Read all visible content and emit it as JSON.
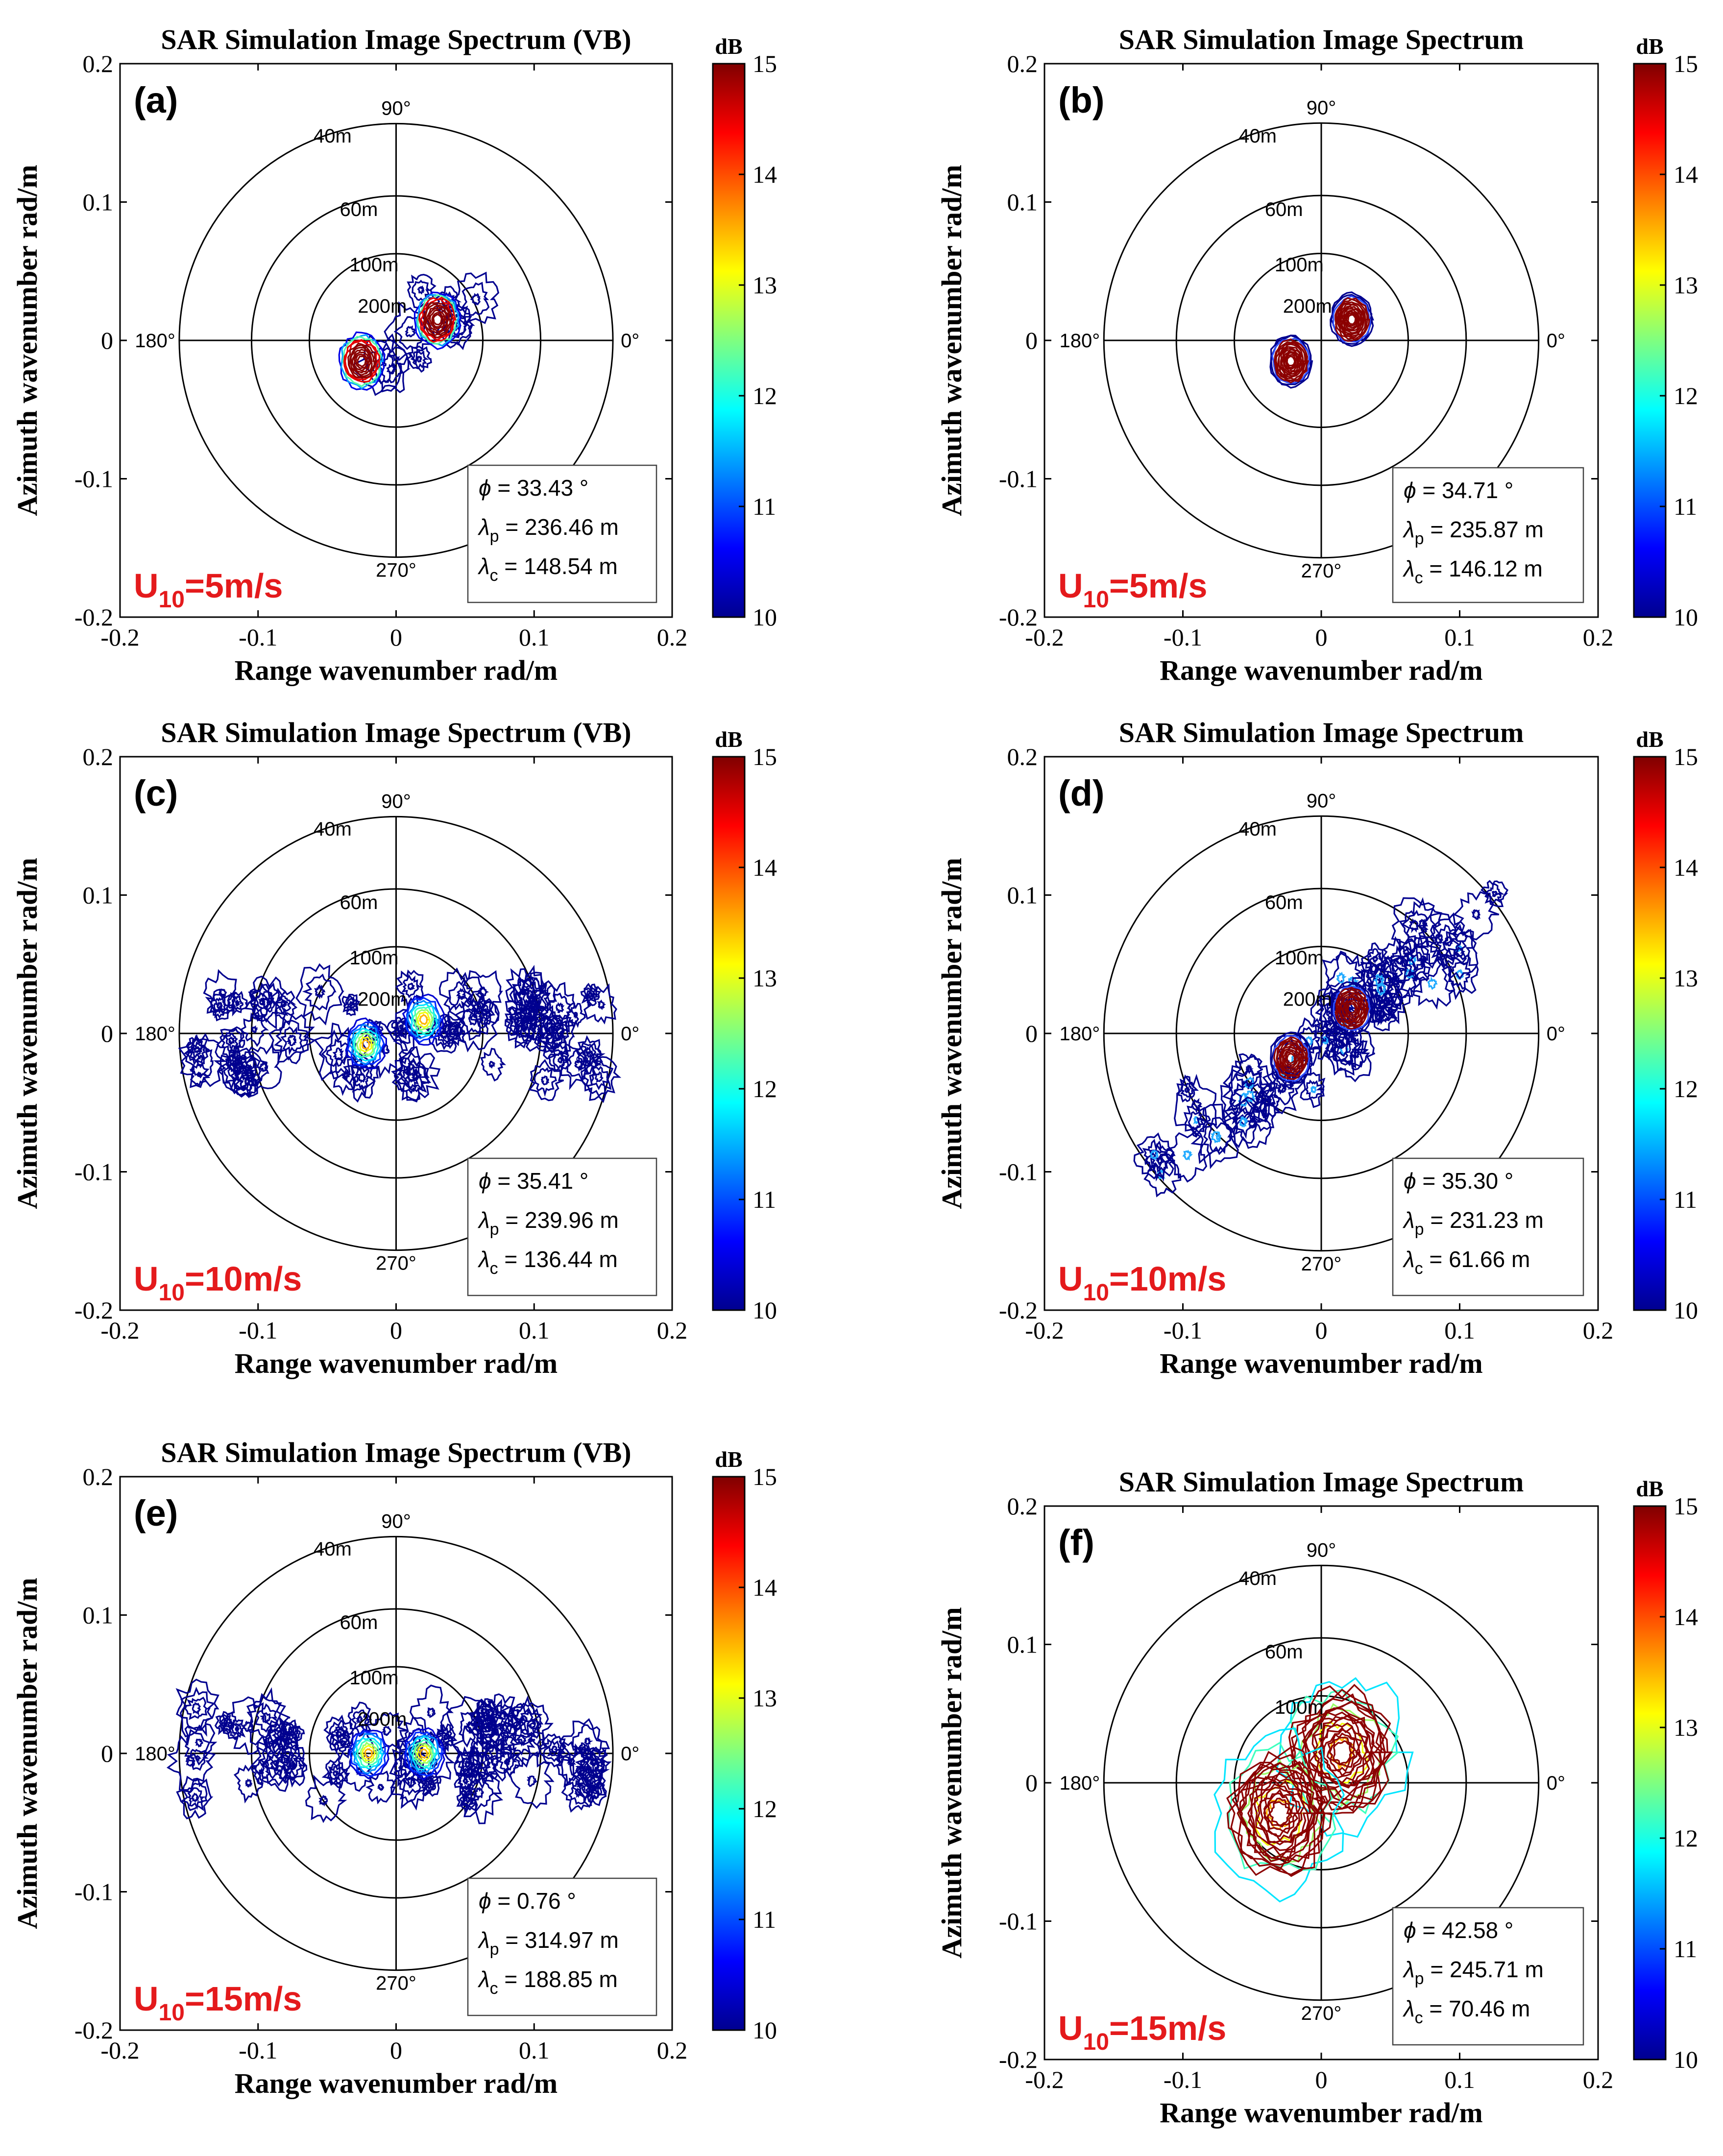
{
  "chart_data": [
    {
      "type": "contour",
      "panel": "(a)",
      "title": "SAR Simulation Image Spectrum (VB)",
      "xlabel": "Range wavenumber rad/m",
      "ylabel": "Azimuth wavenumber rad/m",
      "xlim": [
        -0.2,
        0.2
      ],
      "ylim": [
        -0.2,
        0.2
      ],
      "xticks": [
        "-0.2",
        "-0.1",
        "0",
        "0.1",
        "0.2"
      ],
      "yticks": [
        "-0.2",
        "-0.1",
        "0",
        "0.1",
        "0.2"
      ],
      "ring_labels": [
        "40m",
        "60m",
        "100m",
        "200m"
      ],
      "angle_labels": [
        "90°",
        "180°",
        "0°",
        "270°"
      ],
      "wind": {
        "prefix": "U",
        "sub": "10",
        "suffix": "=5m/s"
      },
      "info": {
        "phi": "= 33.43 °",
        "lambda_p": "= 236.46 m",
        "lambda_c": "= 148.54 m"
      },
      "colorbar": {
        "label": "dB",
        "ticks": [
          "15",
          "14",
          "13",
          "12",
          "11",
          "10"
        ],
        "range": [
          10,
          15
        ]
      },
      "peaks": [
        {
          "kx": 0.03,
          "ky": 0.015,
          "level_db": 15
        },
        {
          "kx": -0.025,
          "ky": -0.015,
          "level_db": 15
        }
      ]
    },
    {
      "type": "contour",
      "panel": "(b)",
      "title": "SAR Simulation Image Spectrum",
      "xlabel": "Range wavenumber rad/m",
      "ylabel": "Azimuth wavenumber rad/m",
      "xlim": [
        -0.2,
        0.2
      ],
      "ylim": [
        -0.2,
        0.2
      ],
      "xticks": [
        "-0.2",
        "-0.1",
        "0",
        "0.1",
        "0.2"
      ],
      "yticks": [
        "-0.2",
        "-0.1",
        "0",
        "0.1",
        "0.2"
      ],
      "ring_labels": [
        "40m",
        "60m",
        "100m",
        "200m"
      ],
      "angle_labels": [
        "90°",
        "180°",
        "0°",
        "270°"
      ],
      "wind": {
        "prefix": "U",
        "sub": "10",
        "suffix": "=5m/s"
      },
      "info": {
        "phi": "= 34.71 °",
        "lambda_p": "= 235.87 m",
        "lambda_c": "= 146.12 m"
      },
      "colorbar": {
        "label": "dB",
        "ticks": [
          "15",
          "14",
          "13",
          "12",
          "11",
          "10"
        ],
        "range": [
          10,
          15
        ]
      },
      "peaks": [
        {
          "kx": 0.022,
          "ky": 0.015,
          "level_db": 15
        },
        {
          "kx": -0.022,
          "ky": -0.015,
          "level_db": 15
        }
      ]
    },
    {
      "type": "contour",
      "panel": "(c)",
      "title": "SAR Simulation Image Spectrum (VB)",
      "xlabel": "Range wavenumber rad/m",
      "ylabel": "Azimuth wavenumber rad/m",
      "xlim": [
        -0.2,
        0.2
      ],
      "ylim": [
        -0.2,
        0.2
      ],
      "xticks": [
        "-0.2",
        "-0.1",
        "0",
        "0.1",
        "0.2"
      ],
      "yticks": [
        "-0.2",
        "-0.1",
        "0",
        "0.1",
        "0.2"
      ],
      "ring_labels": [
        "40m",
        "60m",
        "100m",
        "200m"
      ],
      "angle_labels": [
        "90°",
        "180°",
        "0°",
        "270°"
      ],
      "wind": {
        "prefix": "U",
        "sub": "10",
        "suffix": "=10m/s"
      },
      "info": {
        "phi": "= 35.41 °",
        "lambda_p": "= 239.96 m",
        "lambda_c": "= 136.44 m"
      },
      "colorbar": {
        "label": "dB",
        "ticks": [
          "15",
          "14",
          "13",
          "12",
          "11",
          "10"
        ],
        "range": [
          10,
          15
        ]
      },
      "peaks": [
        {
          "kx": 0.02,
          "ky": 0.01,
          "level_db": 12.5
        },
        {
          "kx": -0.022,
          "ky": -0.008,
          "level_db": 12.5
        }
      ]
    },
    {
      "type": "contour",
      "panel": "(d)",
      "title": "SAR Simulation Image Spectrum",
      "xlabel": "Range wavenumber rad/m",
      "ylabel": "Azimuth wavenumber rad/m",
      "xlim": [
        -0.2,
        0.2
      ],
      "ylim": [
        -0.2,
        0.2
      ],
      "xticks": [
        "-0.2",
        "-0.1",
        "0",
        "0.1",
        "0.2"
      ],
      "yticks": [
        "-0.2",
        "-0.1",
        "0",
        "0.1",
        "0.2"
      ],
      "ring_labels": [
        "40m",
        "60m",
        "100m",
        "200m"
      ],
      "angle_labels": [
        "90°",
        "180°",
        "0°",
        "270°"
      ],
      "wind": {
        "prefix": "U",
        "sub": "10",
        "suffix": "=10m/s"
      },
      "info": {
        "phi": "= 35.30 °",
        "lambda_p": "= 231.23 m",
        "lambda_c": "= 61.66 m"
      },
      "colorbar": {
        "label": "dB",
        "ticks": [
          "15",
          "14",
          "13",
          "12",
          "11",
          "10"
        ],
        "range": [
          10,
          15
        ]
      },
      "peaks": [
        {
          "kx": 0.022,
          "ky": 0.018,
          "level_db": 15
        },
        {
          "kx": -0.022,
          "ky": -0.018,
          "level_db": 15
        }
      ]
    },
    {
      "type": "contour",
      "panel": "(e)",
      "title": "SAR Simulation Image Spectrum (VB)",
      "xlabel": "Range wavenumber rad/m",
      "ylabel": "Azimuth wavenumber rad/m",
      "xlim": [
        -0.2,
        0.2
      ],
      "ylim": [
        -0.2,
        0.2
      ],
      "xticks": [
        "-0.2",
        "-0.1",
        "0",
        "0.1",
        "0.2"
      ],
      "yticks": [
        "-0.2",
        "-0.1",
        "0",
        "0.1",
        "0.2"
      ],
      "ring_labels": [
        "40m",
        "60m",
        "100m",
        "200m"
      ],
      "angle_labels": [
        "90°",
        "180°",
        "0°",
        "270°"
      ],
      "wind": {
        "prefix": "U",
        "sub": "10",
        "suffix": "=15m/s"
      },
      "info": {
        "phi": "= 0.76 °",
        "lambda_p": "= 314.97 m",
        "lambda_c": "= 188.85 m"
      },
      "colorbar": {
        "label": "dB",
        "ticks": [
          "15",
          "14",
          "13",
          "12",
          "11",
          "10"
        ],
        "range": [
          10,
          15
        ]
      },
      "peaks": [
        {
          "kx": 0.02,
          "ky": 0.0,
          "level_db": 13
        },
        {
          "kx": -0.02,
          "ky": 0.0,
          "level_db": 13
        }
      ]
    },
    {
      "type": "contour",
      "panel": "(f)",
      "title": "SAR Simulation Image Spectrum",
      "xlabel": "Range wavenumber rad/m",
      "ylabel": "Azimuth wavenumber rad/m",
      "xlim": [
        -0.2,
        0.2
      ],
      "ylim": [
        -0.2,
        0.2
      ],
      "xticks": [
        "-0.2",
        "-0.1",
        "0",
        "0.1",
        "0.2"
      ],
      "yticks": [
        "-0.2",
        "-0.1",
        "0",
        "0.1",
        "0.2"
      ],
      "ring_labels": [
        "40m",
        "60m",
        "100m"
      ],
      "angle_labels": [
        "90°",
        "180°",
        "0°",
        "270°"
      ],
      "wind": {
        "prefix": "U",
        "sub": "10",
        "suffix": "=15m/s"
      },
      "info": {
        "phi": "= 42.58 °",
        "lambda_p": "= 245.71 m",
        "lambda_c": "= 70.46 m"
      },
      "colorbar": {
        "label": "dB",
        "ticks": [
          "15",
          "14",
          "13",
          "12",
          "11",
          "10"
        ],
        "range": [
          10,
          15
        ]
      },
      "peaks": [
        {
          "kx": 0.018,
          "ky": 0.03,
          "level_db": 15
        },
        {
          "kx": -0.03,
          "ky": -0.02,
          "level_db": 15
        }
      ]
    }
  ]
}
